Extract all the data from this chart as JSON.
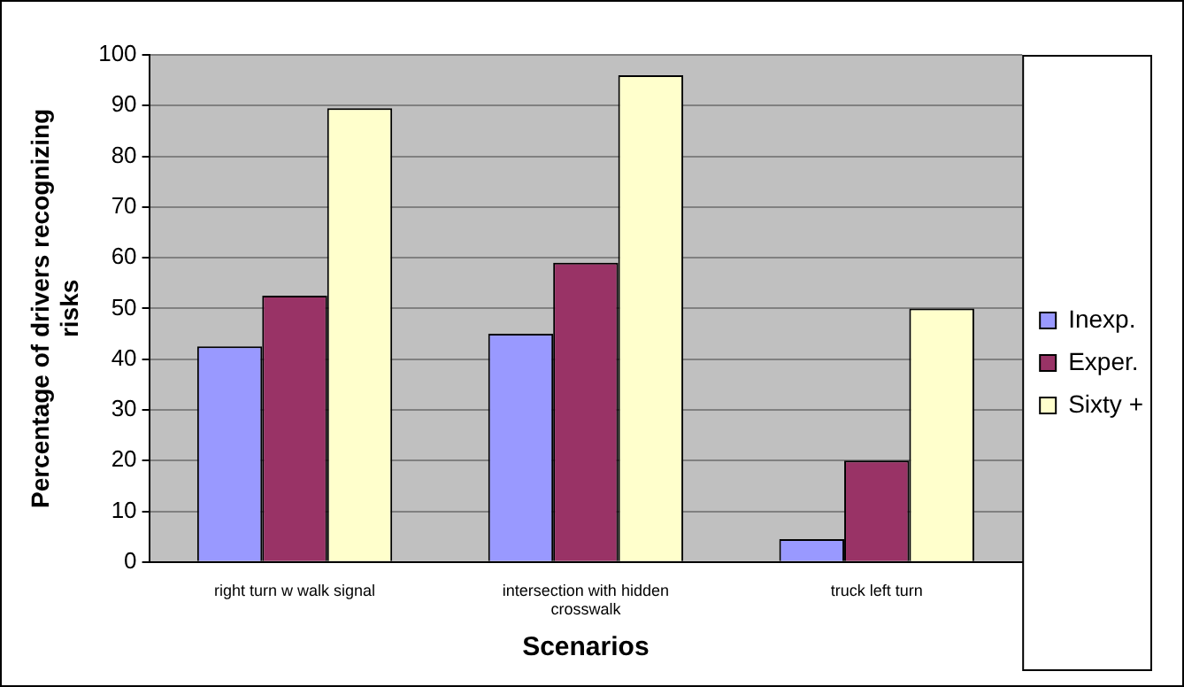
{
  "chart_data": {
    "type": "bar",
    "xlabel": "Scenarios",
    "ylabel": "Percentage of drivers recognizing risks",
    "categories": [
      "right turn w walk signal",
      "intersection with hidden crosswalk",
      "truck left turn"
    ],
    "series": [
      {
        "name": "Inexp.",
        "color": "#9999ff",
        "values": [
          42.5,
          45,
          4.5
        ]
      },
      {
        "name": "Exper.",
        "color": "#993366",
        "values": [
          52.5,
          59,
          20
        ]
      },
      {
        "name": "Sixty +",
        "color": "#ffffcc",
        "values": [
          89.5,
          96,
          50
        ]
      }
    ],
    "ylim": [
      0,
      100
    ],
    "yticks": [
      0,
      10,
      20,
      30,
      40,
      50,
      60,
      70,
      80,
      90,
      100
    ],
    "grid": "y",
    "legend": "right"
  }
}
